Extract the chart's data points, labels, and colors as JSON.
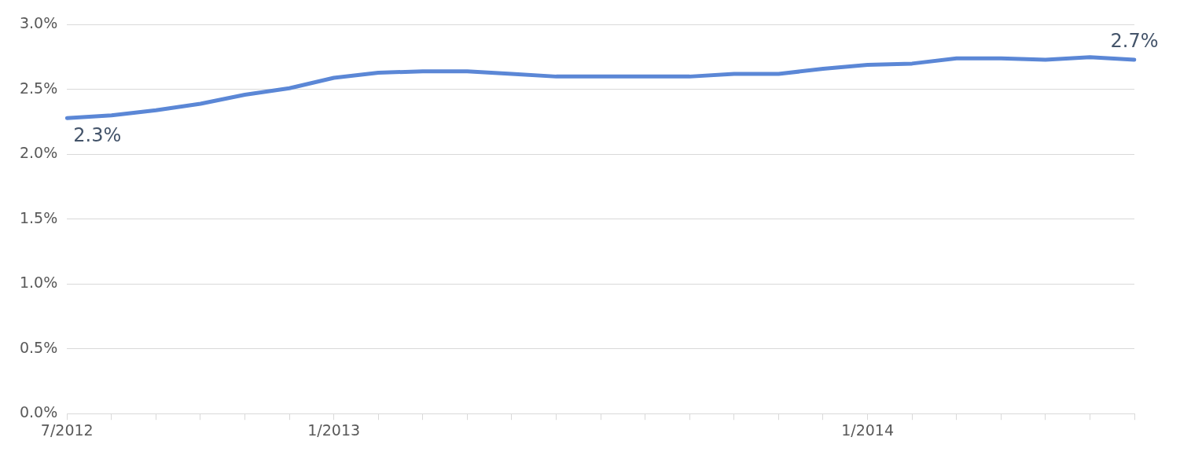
{
  "chart_data": {
    "type": "line",
    "categories": [
      "7/2012",
      null,
      null,
      null,
      null,
      null,
      "1/2013",
      null,
      null,
      null,
      null,
      null,
      null,
      null,
      null,
      null,
      null,
      null,
      "1/2014",
      null,
      null,
      null,
      null,
      null,
      null
    ],
    "series": [
      {
        "color": "#5b87d6",
        "values": [
          2.28,
          2.3,
          2.34,
          2.39,
          2.46,
          2.51,
          2.59,
          2.63,
          2.64,
          2.64,
          2.62,
          2.6,
          2.6,
          2.6,
          2.6,
          2.62,
          2.62,
          2.66,
          2.69,
          2.7,
          2.74,
          2.74,
          2.73,
          2.75,
          2.73
        ],
        "value_labels": [
          "2.3%",
          null,
          null,
          null,
          null,
          null,
          null,
          null,
          null,
          null,
          null,
          null,
          null,
          null,
          null,
          null,
          null,
          null,
          null,
          null,
          null,
          null,
          null,
          null,
          "2.7%"
        ]
      }
    ],
    "ylim": [
      0,
      3
    ],
    "yticks": [
      {
        "value": 0,
        "label": "0.0%"
      },
      {
        "value": 0.5,
        "label": "0.5%"
      },
      {
        "value": 1,
        "label": "1.0%"
      },
      {
        "value": 1.5,
        "label": "1.5%"
      },
      {
        "value": 2,
        "label": "2.0%"
      },
      {
        "value": 2.5,
        "label": "2.5%"
      },
      {
        "value": 3,
        "label": "3.0%"
      }
    ],
    "grid": "y",
    "legend": false,
    "marker": "none",
    "line_style": "solid"
  }
}
